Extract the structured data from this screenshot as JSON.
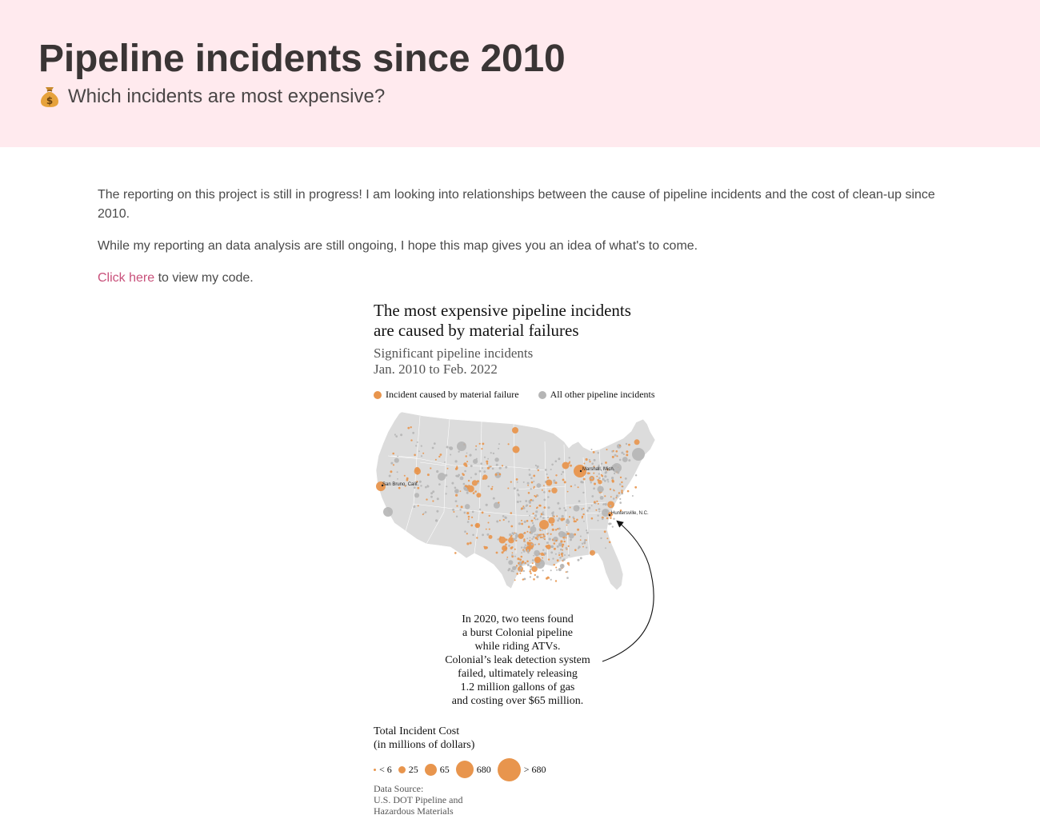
{
  "header": {
    "title": "Pipeline incidents since 2010",
    "subtitle": "Which incidents are most expensive?",
    "subtitle_icon": "money-bag-icon"
  },
  "intro": {
    "p1": "The reporting on this project is still in progress! I am looking into relationships between the cause of pipeline incidents and the cost of clean-up since 2010.",
    "p2": "While my reporting an data analysis are still ongoing, I hope this map gives you an idea of what's to come.",
    "link_text": "Click here",
    "link_suffix": " to view my code."
  },
  "graphic": {
    "title_line1": "The most expensive pipeline incidents",
    "title_line2": "are caused by material failures",
    "subtitle_line1": "Significant pipeline incidents",
    "subtitle_line2": "Jan. 2010 to Feb. 2022",
    "legend": [
      {
        "label": "Incident caused by material failure",
        "color": "#e8954d"
      },
      {
        "label": "All other pipeline incidents",
        "color": "#b5b5b5"
      }
    ],
    "map_labels": {
      "marshall": "Marshall, Mich.",
      "san_bruno": "San Bruno, Calif.",
      "huntersville": "Huntersville, N.C."
    },
    "annotation": [
      "In 2020, two teens found",
      "a burst Colonial pipeline",
      "while riding ATVs.",
      "Colonial’s leak detection system",
      "failed, ultimately releasing",
      "1.2 million gallons of gas",
      "and costing over $65 million."
    ],
    "size_legend_title1": "Total Incident Cost",
    "size_legend_title2": "(in millions of dollars)",
    "size_legend": [
      {
        "label": "< 6"
      },
      {
        "label": "25"
      },
      {
        "label": "65"
      },
      {
        "label": "680"
      },
      {
        "label": "> 680"
      }
    ],
    "source": [
      "Data Source:",
      "U.S. DOT Pipeline and",
      "Hazardous Materials"
    ]
  },
  "colors": {
    "material_failure": "#e8954d",
    "other": "#b5b5b5",
    "land": "#dcdcdc",
    "hero_bg": "#ffeaee",
    "link": "#c8507a"
  }
}
